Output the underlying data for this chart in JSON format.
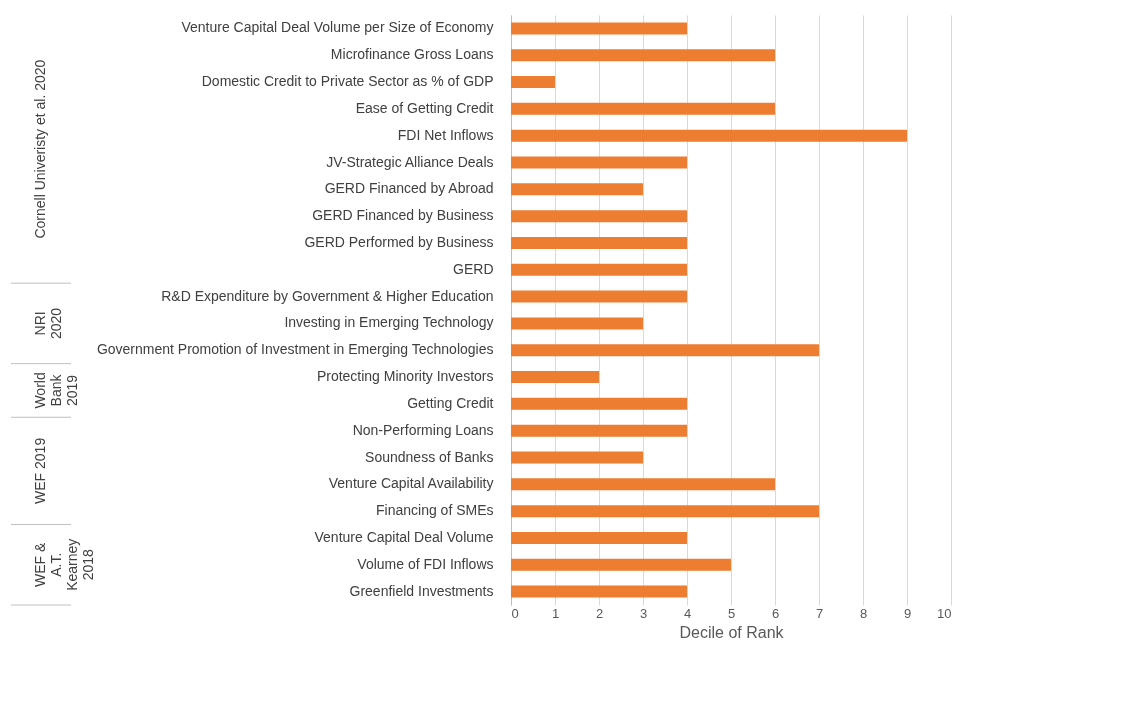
{
  "chart_data": {
    "type": "bar",
    "orientation": "horizontal",
    "xlabel": "Decile of Rank",
    "categories": [
      "Venture Capital Deal Volume per Size of Economy",
      "Microfinance Gross Loans",
      "Domestic Credit to Private Sector as % of GDP",
      "Ease of Getting Credit",
      "FDI Net Inflows",
      "JV-Strategic Alliance Deals",
      "GERD Financed by Abroad",
      "GERD Financed by Business",
      "GERD Performed by Business",
      "GERD",
      "R&D Expenditure by Government & Higher Education",
      "Investing in Emerging Technology",
      "Government Promotion of Investment in Emerging Technologies",
      "Protecting Minority Investors",
      "Getting Credit",
      "Non-Performing Loans",
      "Soundness of Banks",
      "Venture Capital Availability",
      "Financing of SMEs",
      "Venture Capital Deal Volume",
      "Volume of FDI Inflows",
      "Greenfield Investments"
    ],
    "values": [
      4,
      6,
      1,
      6,
      9,
      4,
      3,
      4,
      4,
      4,
      4,
      3,
      7,
      2,
      4,
      4,
      3,
      6,
      7,
      4,
      5,
      4
    ],
    "color": "#ed7d31",
    "xlim": [
      0,
      10
    ],
    "xticks": [
      0,
      1,
      2,
      3,
      4,
      5,
      6,
      7,
      8,
      9,
      10
    ],
    "grid": "x",
    "annotations": [
      "Cornell Univeristy et al. 2020",
      "NRI 2020",
      "World Bank 2019",
      "WEF 2019",
      "WEF & A.T. Kearney 2018"
    ]
  }
}
